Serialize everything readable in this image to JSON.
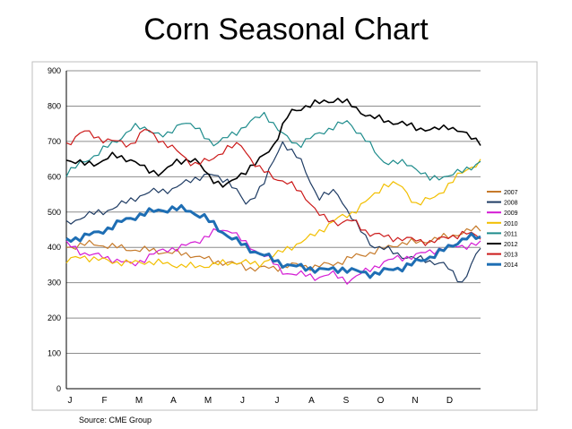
{
  "title": "Corn Seasonal Chart",
  "source": "Source: CME Group",
  "chart_data": {
    "type": "line",
    "title": "Corn Seasonal Chart",
    "xlabel": "",
    "ylabel": "",
    "ylim": [
      0,
      900
    ],
    "yticks": [
      "0",
      "100",
      "200",
      "300",
      "400",
      "500",
      "600",
      "700",
      "800",
      "900"
    ],
    "x_month_labels": [
      "J",
      "F",
      "M",
      "A",
      "M",
      "J",
      "J",
      "A",
      "S",
      "O",
      "N",
      "D"
    ],
    "grid": "horizontal",
    "legend_position": "right",
    "series": [
      {
        "name": "2007",
        "color": "#C67A2A",
        "values": [
          400,
          410,
          405,
          395,
          392,
          385,
          380,
          362,
          355,
          340,
          342,
          350,
          345,
          355,
          375,
          390,
          410,
          415,
          425,
          440,
          455
        ]
      },
      {
        "name": "2008",
        "color": "#1F3C64",
        "values": [
          465,
          490,
          500,
          520,
          545,
          560,
          565,
          595,
          605,
          590,
          520,
          585,
          700,
          645,
          540,
          560,
          470,
          405,
          390,
          370,
          365,
          350,
          300,
          400
        ]
      },
      {
        "name": "2009",
        "color": "#D41BD4",
        "values": [
          410,
          385,
          375,
          365,
          350,
          375,
          395,
          400,
          420,
          445,
          450,
          400,
          380,
          330,
          325,
          315,
          325,
          305,
          330,
          355,
          370,
          375,
          390,
          400,
          405,
          410
        ]
      },
      {
        "name": "2010",
        "color": "#F2BF00",
        "values": [
          360,
          375,
          365,
          360,
          355,
          360,
          355,
          350,
          345,
          350,
          355,
          360,
          350,
          375,
          400,
          420,
          450,
          480,
          500,
          535,
          580,
          575,
          520,
          540,
          575,
          620,
          640
        ]
      },
      {
        "name": "2011",
        "color": "#1E8C8C",
        "values": [
          610,
          640,
          670,
          700,
          740,
          735,
          710,
          760,
          730,
          690,
          720,
          750,
          780,
          720,
          690,
          715,
          740,
          755,
          710,
          645,
          640,
          630,
          590,
          605,
          615,
          645
        ]
      },
      {
        "name": "2012",
        "color": "#000000",
        "values": [
          650,
          635,
          640,
          660,
          650,
          620,
          610,
          645,
          650,
          600,
          570,
          610,
          640,
          690,
          780,
          800,
          810,
          820,
          800,
          770,
          760,
          750,
          740,
          730,
          745,
          720,
          700
        ]
      },
      {
        "name": "2013",
        "color": "#CC1A1A",
        "values": [
          690,
          730,
          710,
          700,
          690,
          735,
          700,
          670,
          635,
          645,
          680,
          690,
          625,
          600,
          580,
          545,
          485,
          470,
          475,
          440,
          430,
          425,
          420,
          415,
          430,
          440,
          430
        ]
      },
      {
        "name": "2014",
        "color": "#1E6EB4",
        "values": [
          420,
          430,
          440,
          460,
          480,
          495,
          505,
          510,
          505,
          485,
          450,
          420,
          395,
          375,
          355,
          345,
          340,
          335,
          340,
          330,
          325,
          335,
          345,
          360,
          380,
          400,
          430,
          425
        ]
      }
    ]
  }
}
